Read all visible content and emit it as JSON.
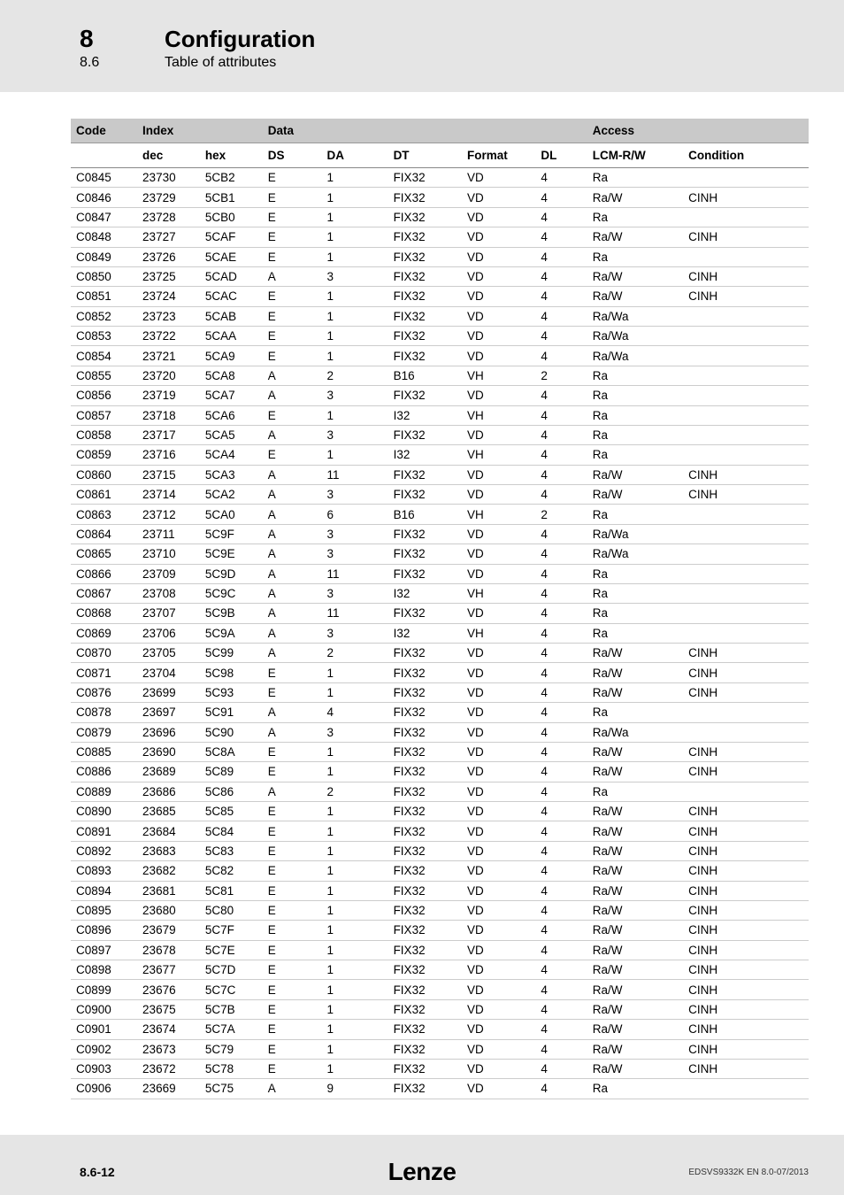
{
  "header": {
    "section_num": "8",
    "section_title": "Configuration",
    "subsection_num": "8.6",
    "subsection_title": "Table of attributes"
  },
  "table": {
    "group_headers": {
      "code": "Code",
      "index": "Index",
      "data": "Data",
      "access": "Access"
    },
    "sub_headers": {
      "code": "",
      "dec": "dec",
      "hex": "hex",
      "ds": "DS",
      "da": "DA",
      "dt": "DT",
      "format": "Format",
      "dl": "DL",
      "lcm": "LCM-R/W",
      "cond": "Condition"
    },
    "rows": [
      {
        "code": "C0845",
        "dec": "23730",
        "hex": "5CB2",
        "ds": "E",
        "da": "1",
        "dt": "FIX32",
        "fmt": "VD",
        "dl": "4",
        "acc": "Ra",
        "cond": ""
      },
      {
        "code": "C0846",
        "dec": "23729",
        "hex": "5CB1",
        "ds": "E",
        "da": "1",
        "dt": "FIX32",
        "fmt": "VD",
        "dl": "4",
        "acc": "Ra/W",
        "cond": "CINH"
      },
      {
        "code": "C0847",
        "dec": "23728",
        "hex": "5CB0",
        "ds": "E",
        "da": "1",
        "dt": "FIX32",
        "fmt": "VD",
        "dl": "4",
        "acc": "Ra",
        "cond": ""
      },
      {
        "code": "C0848",
        "dec": "23727",
        "hex": "5CAF",
        "ds": "E",
        "da": "1",
        "dt": "FIX32",
        "fmt": "VD",
        "dl": "4",
        "acc": "Ra/W",
        "cond": "CINH"
      },
      {
        "code": "C0849",
        "dec": "23726",
        "hex": "5CAE",
        "ds": "E",
        "da": "1",
        "dt": "FIX32",
        "fmt": "VD",
        "dl": "4",
        "acc": "Ra",
        "cond": ""
      },
      {
        "code": "C0850",
        "dec": "23725",
        "hex": "5CAD",
        "ds": "A",
        "da": "3",
        "dt": "FIX32",
        "fmt": "VD",
        "dl": "4",
        "acc": "Ra/W",
        "cond": "CINH"
      },
      {
        "code": "C0851",
        "dec": "23724",
        "hex": "5CAC",
        "ds": "E",
        "da": "1",
        "dt": "FIX32",
        "fmt": "VD",
        "dl": "4",
        "acc": "Ra/W",
        "cond": "CINH"
      },
      {
        "code": "C0852",
        "dec": "23723",
        "hex": "5CAB",
        "ds": "E",
        "da": "1",
        "dt": "FIX32",
        "fmt": "VD",
        "dl": "4",
        "acc": "Ra/Wa",
        "cond": ""
      },
      {
        "code": "C0853",
        "dec": "23722",
        "hex": "5CAA",
        "ds": "E",
        "da": "1",
        "dt": "FIX32",
        "fmt": "VD",
        "dl": "4",
        "acc": "Ra/Wa",
        "cond": ""
      },
      {
        "code": "C0854",
        "dec": "23721",
        "hex": "5CA9",
        "ds": "E",
        "da": "1",
        "dt": "FIX32",
        "fmt": "VD",
        "dl": "4",
        "acc": "Ra/Wa",
        "cond": ""
      },
      {
        "code": "C0855",
        "dec": "23720",
        "hex": "5CA8",
        "ds": "A",
        "da": "2",
        "dt": "B16",
        "fmt": "VH",
        "dl": "2",
        "acc": "Ra",
        "cond": ""
      },
      {
        "code": "C0856",
        "dec": "23719",
        "hex": "5CA7",
        "ds": "A",
        "da": "3",
        "dt": "FIX32",
        "fmt": "VD",
        "dl": "4",
        "acc": "Ra",
        "cond": ""
      },
      {
        "code": "C0857",
        "dec": "23718",
        "hex": "5CA6",
        "ds": "E",
        "da": "1",
        "dt": "I32",
        "fmt": "VH",
        "dl": "4",
        "acc": "Ra",
        "cond": ""
      },
      {
        "code": "C0858",
        "dec": "23717",
        "hex": "5CA5",
        "ds": "A",
        "da": "3",
        "dt": "FIX32",
        "fmt": "VD",
        "dl": "4",
        "acc": "Ra",
        "cond": ""
      },
      {
        "code": "C0859",
        "dec": "23716",
        "hex": "5CA4",
        "ds": "E",
        "da": "1",
        "dt": "I32",
        "fmt": "VH",
        "dl": "4",
        "acc": "Ra",
        "cond": ""
      },
      {
        "code": "C0860",
        "dec": "23715",
        "hex": "5CA3",
        "ds": "A",
        "da": "11",
        "dt": "FIX32",
        "fmt": "VD",
        "dl": "4",
        "acc": "Ra/W",
        "cond": "CINH"
      },
      {
        "code": "C0861",
        "dec": "23714",
        "hex": "5CA2",
        "ds": "A",
        "da": "3",
        "dt": "FIX32",
        "fmt": "VD",
        "dl": "4",
        "acc": "Ra/W",
        "cond": "CINH"
      },
      {
        "code": "C0863",
        "dec": "23712",
        "hex": "5CA0",
        "ds": "A",
        "da": "6",
        "dt": "B16",
        "fmt": "VH",
        "dl": "2",
        "acc": "Ra",
        "cond": ""
      },
      {
        "code": "C0864",
        "dec": "23711",
        "hex": "5C9F",
        "ds": "A",
        "da": "3",
        "dt": "FIX32",
        "fmt": "VD",
        "dl": "4",
        "acc": "Ra/Wa",
        "cond": ""
      },
      {
        "code": "C0865",
        "dec": "23710",
        "hex": "5C9E",
        "ds": "A",
        "da": "3",
        "dt": "FIX32",
        "fmt": "VD",
        "dl": "4",
        "acc": "Ra/Wa",
        "cond": ""
      },
      {
        "code": "C0866",
        "dec": "23709",
        "hex": "5C9D",
        "ds": "A",
        "da": "11",
        "dt": "FIX32",
        "fmt": "VD",
        "dl": "4",
        "acc": "Ra",
        "cond": ""
      },
      {
        "code": "C0867",
        "dec": "23708",
        "hex": "5C9C",
        "ds": "A",
        "da": "3",
        "dt": "I32",
        "fmt": "VH",
        "dl": "4",
        "acc": "Ra",
        "cond": ""
      },
      {
        "code": "C0868",
        "dec": "23707",
        "hex": "5C9B",
        "ds": "A",
        "da": "11",
        "dt": "FIX32",
        "fmt": "VD",
        "dl": "4",
        "acc": "Ra",
        "cond": ""
      },
      {
        "code": "C0869",
        "dec": "23706",
        "hex": "5C9A",
        "ds": "A",
        "da": "3",
        "dt": "I32",
        "fmt": "VH",
        "dl": "4",
        "acc": "Ra",
        "cond": ""
      },
      {
        "code": "C0870",
        "dec": "23705",
        "hex": "5C99",
        "ds": "A",
        "da": "2",
        "dt": "FIX32",
        "fmt": "VD",
        "dl": "4",
        "acc": "Ra/W",
        "cond": "CINH"
      },
      {
        "code": "C0871",
        "dec": "23704",
        "hex": "5C98",
        "ds": "E",
        "da": "1",
        "dt": "FIX32",
        "fmt": "VD",
        "dl": "4",
        "acc": "Ra/W",
        "cond": "CINH"
      },
      {
        "code": "C0876",
        "dec": "23699",
        "hex": "5C93",
        "ds": "E",
        "da": "1",
        "dt": "FIX32",
        "fmt": "VD",
        "dl": "4",
        "acc": "Ra/W",
        "cond": "CINH"
      },
      {
        "code": "C0878",
        "dec": "23697",
        "hex": "5C91",
        "ds": "A",
        "da": "4",
        "dt": "FIX32",
        "fmt": "VD",
        "dl": "4",
        "acc": "Ra",
        "cond": ""
      },
      {
        "code": "C0879",
        "dec": "23696",
        "hex": "5C90",
        "ds": "A",
        "da": "3",
        "dt": "FIX32",
        "fmt": "VD",
        "dl": "4",
        "acc": "Ra/Wa",
        "cond": ""
      },
      {
        "code": "C0885",
        "dec": "23690",
        "hex": "5C8A",
        "ds": "E",
        "da": "1",
        "dt": "FIX32",
        "fmt": "VD",
        "dl": "4",
        "acc": "Ra/W",
        "cond": "CINH"
      },
      {
        "code": "C0886",
        "dec": "23689",
        "hex": "5C89",
        "ds": "E",
        "da": "1",
        "dt": "FIX32",
        "fmt": "VD",
        "dl": "4",
        "acc": "Ra/W",
        "cond": "CINH"
      },
      {
        "code": "C0889",
        "dec": "23686",
        "hex": "5C86",
        "ds": "A",
        "da": "2",
        "dt": "FIX32",
        "fmt": "VD",
        "dl": "4",
        "acc": "Ra",
        "cond": ""
      },
      {
        "code": "C0890",
        "dec": "23685",
        "hex": "5C85",
        "ds": "E",
        "da": "1",
        "dt": "FIX32",
        "fmt": "VD",
        "dl": "4",
        "acc": "Ra/W",
        "cond": "CINH"
      },
      {
        "code": "C0891",
        "dec": "23684",
        "hex": "5C84",
        "ds": "E",
        "da": "1",
        "dt": "FIX32",
        "fmt": "VD",
        "dl": "4",
        "acc": "Ra/W",
        "cond": "CINH"
      },
      {
        "code": "C0892",
        "dec": "23683",
        "hex": "5C83",
        "ds": "E",
        "da": "1",
        "dt": "FIX32",
        "fmt": "VD",
        "dl": "4",
        "acc": "Ra/W",
        "cond": "CINH"
      },
      {
        "code": "C0893",
        "dec": "23682",
        "hex": "5C82",
        "ds": "E",
        "da": "1",
        "dt": "FIX32",
        "fmt": "VD",
        "dl": "4",
        "acc": "Ra/W",
        "cond": "CINH"
      },
      {
        "code": "C0894",
        "dec": "23681",
        "hex": "5C81",
        "ds": "E",
        "da": "1",
        "dt": "FIX32",
        "fmt": "VD",
        "dl": "4",
        "acc": "Ra/W",
        "cond": "CINH"
      },
      {
        "code": "C0895",
        "dec": "23680",
        "hex": "5C80",
        "ds": "E",
        "da": "1",
        "dt": "FIX32",
        "fmt": "VD",
        "dl": "4",
        "acc": "Ra/W",
        "cond": "CINH"
      },
      {
        "code": "C0896",
        "dec": "23679",
        "hex": "5C7F",
        "ds": "E",
        "da": "1",
        "dt": "FIX32",
        "fmt": "VD",
        "dl": "4",
        "acc": "Ra/W",
        "cond": "CINH"
      },
      {
        "code": "C0897",
        "dec": "23678",
        "hex": "5C7E",
        "ds": "E",
        "da": "1",
        "dt": "FIX32",
        "fmt": "VD",
        "dl": "4",
        "acc": "Ra/W",
        "cond": "CINH"
      },
      {
        "code": "C0898",
        "dec": "23677",
        "hex": "5C7D",
        "ds": "E",
        "da": "1",
        "dt": "FIX32",
        "fmt": "VD",
        "dl": "4",
        "acc": "Ra/W",
        "cond": "CINH"
      },
      {
        "code": "C0899",
        "dec": "23676",
        "hex": "5C7C",
        "ds": "E",
        "da": "1",
        "dt": "FIX32",
        "fmt": "VD",
        "dl": "4",
        "acc": "Ra/W",
        "cond": "CINH"
      },
      {
        "code": "C0900",
        "dec": "23675",
        "hex": "5C7B",
        "ds": "E",
        "da": "1",
        "dt": "FIX32",
        "fmt": "VD",
        "dl": "4",
        "acc": "Ra/W",
        "cond": "CINH"
      },
      {
        "code": "C0901",
        "dec": "23674",
        "hex": "5C7A",
        "ds": "E",
        "da": "1",
        "dt": "FIX32",
        "fmt": "VD",
        "dl": "4",
        "acc": "Ra/W",
        "cond": "CINH"
      },
      {
        "code": "C0902",
        "dec": "23673",
        "hex": "5C79",
        "ds": "E",
        "da": "1",
        "dt": "FIX32",
        "fmt": "VD",
        "dl": "4",
        "acc": "Ra/W",
        "cond": "CINH"
      },
      {
        "code": "C0903",
        "dec": "23672",
        "hex": "5C78",
        "ds": "E",
        "da": "1",
        "dt": "FIX32",
        "fmt": "VD",
        "dl": "4",
        "acc": "Ra/W",
        "cond": "CINH"
      },
      {
        "code": "C0906",
        "dec": "23669",
        "hex": "5C75",
        "ds": "A",
        "da": "9",
        "dt": "FIX32",
        "fmt": "VD",
        "dl": "4",
        "acc": "Ra",
        "cond": ""
      }
    ]
  },
  "footer": {
    "page": "8.6-12",
    "brand": "Lenze",
    "doc": "EDSVS9332K EN 8.0-07/2013"
  }
}
